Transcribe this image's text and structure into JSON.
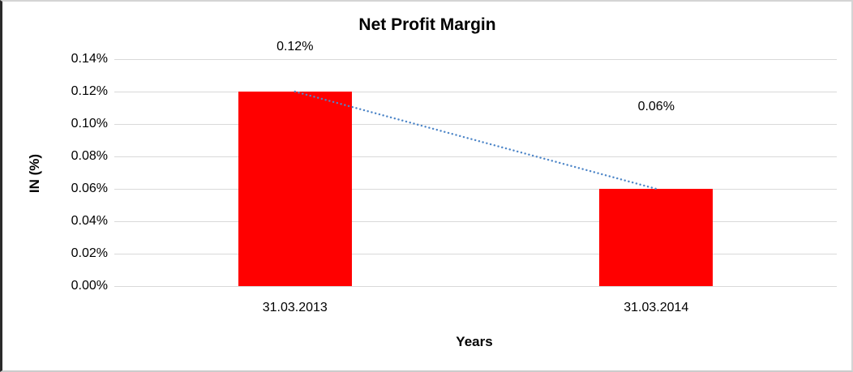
{
  "chart": {
    "title": "Net Profit Margin",
    "y_axis_title": "IN (%)",
    "x_axis_title": "Years",
    "bar_color": "#ff0000",
    "trendline_color": "#4e86c8",
    "gridline_color": "#d9d9d9"
  },
  "chart_data": {
    "type": "bar",
    "title": "Net Profit Margin",
    "xlabel": "Years",
    "ylabel": "IN (%)",
    "categories": [
      "31.03.2013",
      "31.03.2014"
    ],
    "values": [
      0.12,
      0.06
    ],
    "data_labels": [
      "0.12%",
      "0.06%"
    ],
    "y_ticks_top_to_bottom": [
      "0.14%",
      "0.12%",
      "0.10%",
      "0.08%",
      "0.06%",
      "0.04%",
      "0.02%",
      "0.00%"
    ],
    "ylim": [
      0,
      0.14
    ],
    "grid": true,
    "legend": "none",
    "trendline": {
      "style": "dotted",
      "from_category": "31.03.2013",
      "to_category": "31.03.2014"
    }
  }
}
